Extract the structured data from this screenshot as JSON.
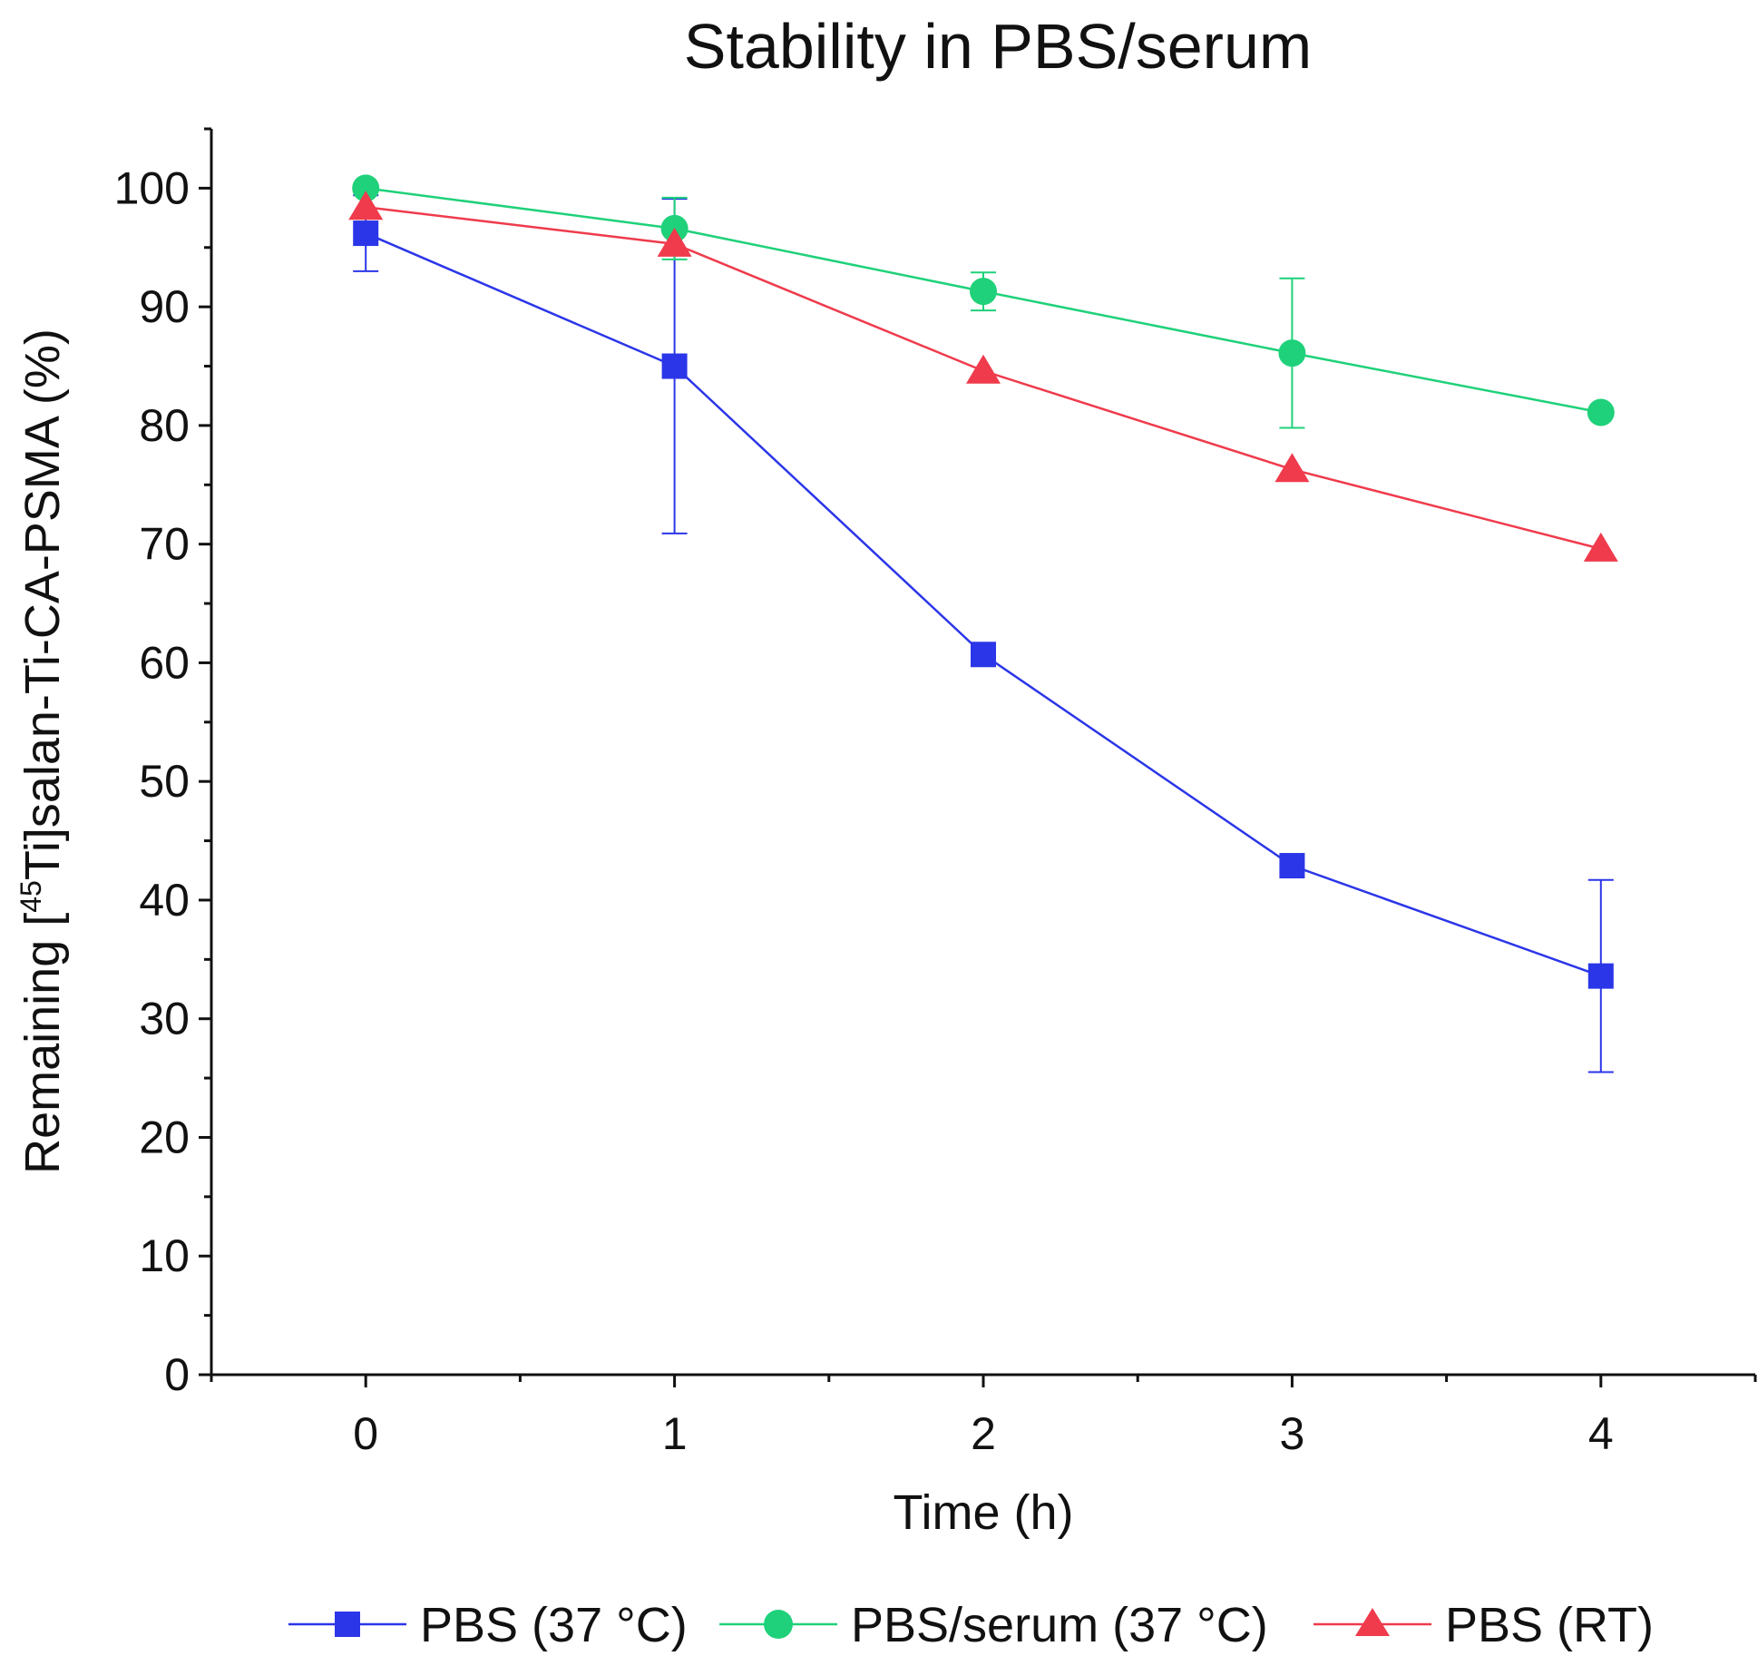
{
  "chart_data": {
    "type": "line",
    "title": "Stability in PBS/serum",
    "xlabel": "Time (h)",
    "ylabel": {
      "prefix": "Remaining [",
      "superscript": "45",
      "suffix": "Ti]salan-Ti-CA-PSMA (%)"
    },
    "xlim": [
      -0.5,
      4.5
    ],
    "ylim": [
      0,
      105
    ],
    "x_ticks": [
      0,
      1,
      2,
      3,
      4
    ],
    "x_minor_ticks": [
      -0.5,
      0.5,
      1.5,
      2.5,
      3.5,
      4.5
    ],
    "y_ticks": [
      0,
      10,
      20,
      30,
      40,
      50,
      60,
      70,
      80,
      90,
      100
    ],
    "y_minor_ticks": [
      5,
      15,
      25,
      35,
      45,
      55,
      65,
      75,
      85,
      95,
      105
    ],
    "x_tick_labels": [
      "0",
      "1",
      "2",
      "3",
      "4"
    ],
    "y_tick_labels": [
      "0",
      "10",
      "20",
      "30",
      "40",
      "50",
      "60",
      "70",
      "80",
      "90",
      "100"
    ],
    "grid": false,
    "legend_position": "bottom",
    "series": [
      {
        "name": "PBS (37 °C)",
        "color": "#2b36e8",
        "marker": "square",
        "x": [
          0,
          1,
          2,
          3,
          4
        ],
        "values": [
          96.2,
          85.0,
          60.7,
          42.9,
          33.6
        ],
        "error": [
          3.2,
          14.1,
          0.0,
          0.0,
          8.1
        ]
      },
      {
        "name": "PBS/serum (37 °C)",
        "color": "#1fd17a",
        "marker": "circle",
        "x": [
          0,
          1,
          2,
          3,
          4
        ],
        "values": [
          100.0,
          96.6,
          91.3,
          86.1,
          81.1
        ],
        "error": [
          0.0,
          2.6,
          1.6,
          6.3,
          0.0
        ]
      },
      {
        "name": "PBS (RT)",
        "color": "#ef3b4c",
        "marker": "triangle",
        "x": [
          0,
          1,
          2,
          3,
          4
        ],
        "values": [
          98.4,
          95.3,
          84.6,
          76.3,
          69.6
        ],
        "error": [
          0.0,
          0.0,
          0.0,
          0.0,
          0.0
        ]
      }
    ]
  }
}
